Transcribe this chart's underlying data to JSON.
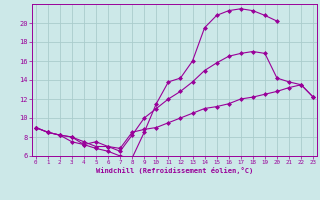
{
  "xlabel": "Windchill (Refroidissement éolien,°C)",
  "bg_color": "#cce8e8",
  "grid_color": "#aacccc",
  "line_color": "#990099",
  "line1_x": [
    0,
    1,
    2,
    3,
    4,
    5,
    6,
    7,
    8,
    9,
    10,
    11,
    12,
    13,
    14,
    15,
    16,
    17,
    18,
    19,
    20
  ],
  "line1_y": [
    9.0,
    8.5,
    8.2,
    7.5,
    7.2,
    6.8,
    6.5,
    6.0,
    5.8,
    8.5,
    11.5,
    13.8,
    14.2,
    16.0,
    19.5,
    20.8,
    21.3,
    21.5,
    21.3,
    20.8,
    20.2
  ],
  "line2_x": [
    0,
    1,
    2,
    3,
    4,
    5,
    6,
    7,
    8,
    9,
    10,
    11,
    12,
    13,
    14,
    15,
    16,
    17,
    18,
    19,
    20,
    21,
    22,
    23
  ],
  "line2_y": [
    9.0,
    8.5,
    8.2,
    8.0,
    7.2,
    7.5,
    7.0,
    6.5,
    8.2,
    10.0,
    11.0,
    12.0,
    12.8,
    13.8,
    15.0,
    15.8,
    16.5,
    16.8,
    17.0,
    16.8,
    14.2,
    13.8,
    13.5,
    12.2
  ],
  "line3_x": [
    0,
    1,
    2,
    3,
    4,
    5,
    6,
    7,
    8,
    9,
    10,
    11,
    12,
    13,
    14,
    15,
    16,
    17,
    18,
    19,
    20,
    21,
    22,
    23
  ],
  "line3_y": [
    9.0,
    8.5,
    8.2,
    8.0,
    7.5,
    7.0,
    7.0,
    6.8,
    8.5,
    8.8,
    9.0,
    9.5,
    10.0,
    10.5,
    11.0,
    11.2,
    11.5,
    12.0,
    12.2,
    12.5,
    12.8,
    13.2,
    13.5,
    12.2
  ],
  "xlim": [
    -0.3,
    23.3
  ],
  "ylim": [
    6,
    22
  ],
  "xticks": [
    0,
    1,
    2,
    3,
    4,
    5,
    6,
    7,
    8,
    9,
    10,
    11,
    12,
    13,
    14,
    15,
    16,
    17,
    18,
    19,
    20,
    21,
    22,
    23
  ],
  "yticks": [
    6,
    8,
    10,
    12,
    14,
    16,
    18,
    20
  ],
  "marker": "D",
  "markersize": 2.0,
  "linewidth": 0.8
}
